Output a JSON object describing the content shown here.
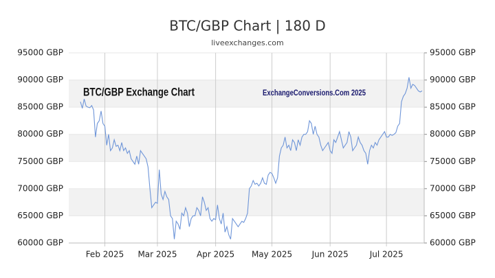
{
  "chart_data": {
    "type": "line",
    "title": "BTC/GBP Chart | 180 D",
    "subtitle": "liveexchanges.com",
    "annotations": [
      "BTC/GBP Exchange Chart",
      "ExchangeConversions.Com 2025"
    ],
    "categories": [
      null,
      null,
      null,
      null,
      null,
      null,
      null,
      null,
      null,
      null,
      null,
      null,
      null,
      "Feb 2025",
      null,
      null,
      null,
      null,
      null,
      null,
      null,
      null,
      null,
      null,
      null,
      null,
      null,
      null,
      null,
      null,
      null,
      null,
      null,
      null,
      null,
      null,
      null,
      null,
      null,
      null,
      null,
      "Mar 2025",
      null,
      null,
      null,
      null,
      null,
      null,
      null,
      null,
      null,
      null,
      null,
      null,
      null,
      null,
      null,
      null,
      null,
      null,
      null,
      null,
      null,
      null,
      null,
      null,
      null,
      null,
      null,
      null,
      null,
      null,
      "Apr 2025",
      null,
      null,
      null,
      null,
      null,
      null,
      null,
      null,
      null,
      null,
      null,
      null,
      null,
      null,
      null,
      null,
      null,
      null,
      null,
      null,
      null,
      null,
      null,
      null,
      null,
      null,
      null,
      null,
      null,
      "May 2025",
      null,
      null,
      null,
      null,
      null,
      null,
      null,
      null,
      null,
      null,
      null,
      null,
      null,
      null,
      null,
      null,
      null,
      null,
      null,
      null,
      null,
      null,
      null,
      null,
      null,
      null,
      null,
      null,
      null,
      null,
      "Jun 2025",
      null,
      null,
      null,
      null,
      null,
      null,
      null,
      null,
      null,
      null,
      null,
      null,
      null,
      null,
      null,
      null,
      null,
      null,
      null,
      null,
      null,
      null,
      null,
      null,
      null,
      null,
      null,
      null,
      null,
      "Jul 2025",
      null,
      null,
      null,
      null,
      null,
      null,
      null,
      null,
      null,
      null,
      null,
      null,
      null,
      null,
      null,
      null,
      null,
      null,
      null
    ],
    "series": [
      {
        "name": "BTC/GBP",
        "color": "#6e95d8",
        "values": [
          86000,
          84800,
          86500,
          85200,
          85000,
          84900,
          85300,
          84500,
          79500,
          82000,
          82500,
          84300,
          82000,
          81500,
          78000,
          80000,
          77000,
          77500,
          79000,
          77800,
          78000,
          77000,
          78500,
          77000,
          77500,
          76500,
          77000,
          75500,
          75000,
          74500,
          76000,
          74500,
          77000,
          76500,
          76000,
          75500,
          74000,
          70000,
          66500,
          67000,
          67500,
          67300,
          73500,
          69000,
          68000,
          69500,
          68500,
          68000,
          65000,
          64500,
          60700,
          64000,
          63500,
          62500,
          65500,
          65000,
          66500,
          65500,
          63000,
          64500,
          65000,
          65000,
          66500,
          66000,
          65000,
          68500,
          67500,
          66000,
          66500,
          64500,
          64000,
          64500,
          64300,
          67000,
          64500,
          63500,
          65500,
          62000,
          63000,
          61500,
          60700,
          64500,
          64000,
          63500,
          63000,
          63500,
          64000,
          63800,
          64500,
          65500,
          70000,
          70500,
          71500,
          70800,
          71000,
          70500,
          71000,
          72000,
          71000,
          70800,
          72500,
          73000,
          72800,
          72000,
          71000,
          72000,
          76000,
          77500,
          78000,
          79500,
          77500,
          78000,
          77000,
          79000,
          78500,
          77000,
          79000,
          78000,
          79500,
          80000,
          80000,
          80500,
          82500,
          82000,
          80000,
          81500,
          80000,
          79500,
          78000,
          77000,
          77500,
          78000,
          78500,
          77000,
          76500,
          79000,
          78500,
          79500,
          80500,
          79000,
          77500,
          78000,
          78500,
          80500,
          79500,
          77000,
          77500,
          78000,
          79500,
          78500,
          78000,
          77000,
          76500,
          74500,
          77000,
          78000,
          77500,
          78500,
          78000,
          79000,
          79500,
          80000,
          80500,
          79500,
          79500,
          80000,
          79800,
          80000,
          80300,
          81500,
          82000,
          86000,
          87000,
          87500,
          88500,
          90500,
          88500,
          89200,
          89000,
          88500,
          88000,
          87800,
          88000
        ]
      }
    ],
    "ylim": [
      60000,
      95000
    ],
    "yticks": [
      {
        "value": 60000,
        "label": "60000 GBP"
      },
      {
        "value": 65000,
        "label": "65000 GBP"
      },
      {
        "value": 70000,
        "label": "70000 GBP"
      },
      {
        "value": 75000,
        "label": "75000 GBP"
      },
      {
        "value": 80000,
        "label": "80000 GBP"
      },
      {
        "value": 85000,
        "label": "85000 GBP"
      },
      {
        "value": 90000,
        "label": "90000 GBP"
      },
      {
        "value": 95000,
        "label": "95000 GBP"
      }
    ],
    "y2lim": [
      60000,
      95000
    ],
    "y2ticks": [
      {
        "value": 60000,
        "label": "60000 GBP"
      },
      {
        "value": 65000,
        "label": "65000 GBP"
      },
      {
        "value": 70000,
        "label": "70000 GBP"
      },
      {
        "value": 75000,
        "label": "75000 GBP"
      },
      {
        "value": 80000,
        "label": "80000 GBP"
      },
      {
        "value": 85000,
        "label": "85000 GBP"
      },
      {
        "value": 90000,
        "label": "90000 GBP"
      },
      {
        "value": 95000,
        "label": "95000 GBP"
      }
    ],
    "grid": true
  }
}
